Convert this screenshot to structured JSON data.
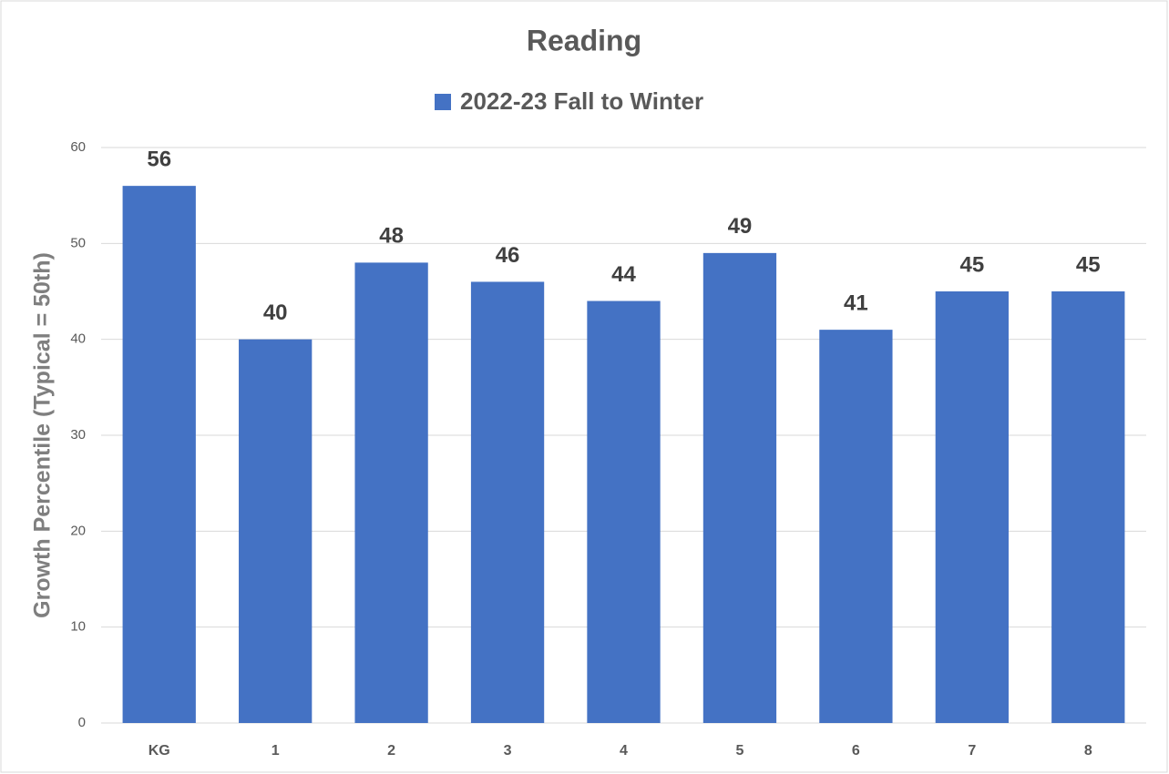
{
  "chart_data": {
    "type": "bar",
    "title": "Reading",
    "y_label": "Growth Percentile (Typical = 50th)",
    "categories": [
      "KG",
      "1",
      "2",
      "3",
      "4",
      "5",
      "6",
      "7",
      "8"
    ],
    "series": [
      {
        "name": "2022-23 Fall to Winter",
        "color": "#4472c4",
        "values": [
          56,
          40,
          48,
          46,
          44,
          49,
          41,
          45,
          45
        ]
      }
    ],
    "ylim": [
      0,
      60
    ],
    "yticks": [
      0,
      10,
      20,
      30,
      40,
      50,
      60
    ],
    "grid": true
  }
}
